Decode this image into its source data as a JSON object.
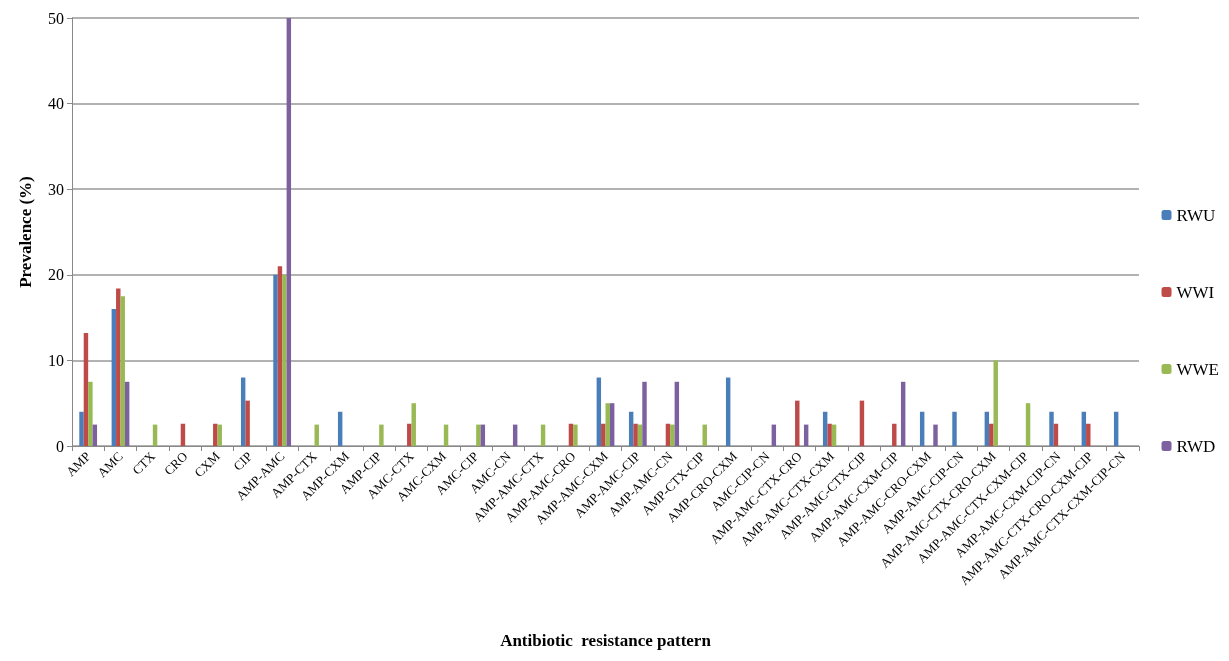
{
  "chart_data": {
    "type": "bar",
    "xlabel": "Antibiotic  resistance pattern",
    "ylabel": "Prevalence (%)",
    "categories": [
      "AMP",
      "AMC",
      "CTX",
      "CRO",
      "CXM",
      "CIP",
      "AMP-AMC",
      "AMP-CTX",
      "AMP-CXM",
      "AMP-CIP",
      "AMC-CTX",
      "AMC-CXM",
      "AMC-CIP",
      "AMC-CN",
      "AMP-AMC-CTX",
      "AMP-AMC-CRO",
      "AMP-AMC-CXM",
      "AMP-AMC-CIP",
      "AMP-AMC-CN",
      "AMP-CTX-CIP",
      "AMP-CRO-CXM",
      "AMC-CIP-CN",
      "AMP-AMC-CTX-CRO",
      "AMP-AMC-CTX-CXM",
      "AMP-AMC-CTX-CIP",
      "AMP-AMC-CXM-CIP",
      "AMP-AMC-CRO-CXM",
      "AMP-AMC-CIP-CN",
      "AMP-AMC-CTX-CRO-CXM",
      "AMP-AMC-CTX-CXM-CIP",
      "AMP-AMC-CXM-CIP-CN",
      "AMP-AMC-CTX-CRO-CXM-CIP",
      "AMP-AMC-CTX-CXM-CIP-CN"
    ],
    "series": [
      {
        "name": "RWU",
        "color": "#4a7ebb",
        "values": [
          4,
          16,
          null,
          null,
          null,
          8,
          20,
          null,
          4,
          null,
          null,
          null,
          null,
          null,
          null,
          null,
          8,
          4,
          null,
          null,
          8,
          null,
          null,
          4,
          null,
          null,
          4,
          4,
          4,
          null,
          4,
          4,
          4
        ]
      },
      {
        "name": "WWI",
        "color": "#be4b48",
        "values": [
          13.2,
          18.4,
          null,
          2.6,
          2.6,
          5.3,
          21,
          null,
          null,
          null,
          2.6,
          null,
          null,
          null,
          null,
          2.6,
          2.6,
          2.6,
          2.6,
          null,
          null,
          null,
          5.3,
          2.6,
          5.3,
          2.6,
          null,
          null,
          2.6,
          null,
          2.6,
          2.6,
          null
        ]
      },
      {
        "name": "WWE",
        "color": "#98b954",
        "values": [
          7.5,
          17.5,
          2.5,
          null,
          2.5,
          null,
          20,
          2.5,
          null,
          2.5,
          5,
          2.5,
          2.5,
          null,
          2.5,
          2.5,
          5,
          2.5,
          2.5,
          2.5,
          null,
          null,
          null,
          2.5,
          null,
          null,
          null,
          null,
          10,
          5,
          null,
          null,
          null
        ]
      },
      {
        "name": "RWD",
        "color": "#7d60a0",
        "values": [
          2.5,
          7.5,
          null,
          null,
          null,
          null,
          50,
          null,
          null,
          null,
          null,
          null,
          2.5,
          2.5,
          null,
          null,
          5,
          7.5,
          7.5,
          null,
          null,
          2.5,
          2.5,
          null,
          null,
          7.5,
          2.5,
          null,
          null,
          null,
          null,
          null,
          null
        ]
      }
    ],
    "ylim": [
      0,
      50
    ],
    "yticks": [
      0,
      10,
      20,
      30,
      40,
      50
    ],
    "grid": "y",
    "legend": "right"
  }
}
